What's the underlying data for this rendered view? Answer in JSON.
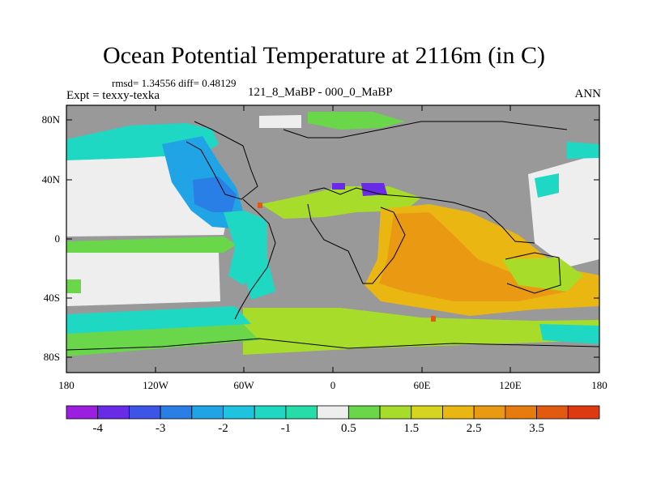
{
  "title": "Ocean Potential Temperature at 2116m (in C)",
  "stats": "rmsd= 1.34556 diff= 0.48129",
  "left_label": "Expt = texxy-texka",
  "center_label": "121_8_MaBP - 000_0_MaBP",
  "right_label": "ANN",
  "lat_ticks": [
    "80N",
    "40N",
    "0",
    "40S",
    "80S"
  ],
  "lon_ticks": [
    "180",
    "120W",
    "60W",
    "0",
    "60E",
    "120E",
    "180"
  ],
  "colorbar": {
    "colors": [
      "#9b1fe0",
      "#6a2be6",
      "#3c55e6",
      "#2a7fe6",
      "#20a4e6",
      "#1ec3e0",
      "#1fd8c4",
      "#26ddaa",
      "#eeeeee",
      "#6ad64a",
      "#a8dc2a",
      "#d6d41e",
      "#eab712",
      "#ea9a12",
      "#e67c10",
      "#e25a10",
      "#de3a12"
    ],
    "labels": [
      "-4",
      "-3",
      "-2",
      "-1",
      "0.5",
      "1.5",
      "2.5",
      "3.5"
    ]
  }
}
